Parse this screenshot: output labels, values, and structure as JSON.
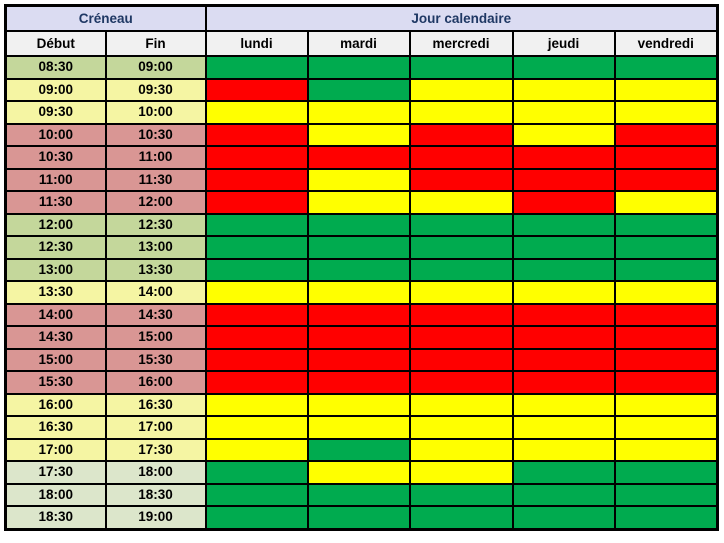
{
  "header": {
    "creneau": "Créneau",
    "jour_calendaire": "Jour calendaire",
    "debut": "Début",
    "fin": "Fin",
    "days": [
      "lundi",
      "mardi",
      "mercredi",
      "jeudi",
      "vendredi"
    ]
  },
  "palette": {
    "group_header_bg": "#DBDCF2",
    "group_header_text": "#1F3864",
    "day_header_bg": "#F1F1F1",
    "grid_border": "#000000",
    "day_colors": {
      "green": "#00AB4F",
      "yellow": "#FFFF00",
      "red": "#FF0000"
    },
    "time_colors": {
      "sage": "#C4D79B",
      "light_green": "#DCE6CB",
      "yellow": "#F5F5A3",
      "salmon": "#D99694"
    }
  },
  "chart_data": {
    "type": "heatmap",
    "title": "Jour calendaire / Créneau availability grid",
    "x_labels": [
      "lundi",
      "mardi",
      "mercredi",
      "jeudi",
      "vendredi"
    ],
    "color_scale": {
      "green": "#00AB4F",
      "yellow": "#FFFF00",
      "red": "#FF0000"
    },
    "rows": [
      {
        "debut": "08:30",
        "fin": "09:00",
        "time_color": "sage",
        "cells": [
          "green",
          "green",
          "green",
          "green",
          "green"
        ]
      },
      {
        "debut": "09:00",
        "fin": "09:30",
        "time_color": "yellow",
        "cells": [
          "red",
          "green",
          "yellow",
          "yellow",
          "yellow"
        ]
      },
      {
        "debut": "09:30",
        "fin": "10:00",
        "time_color": "yellow",
        "cells": [
          "yellow",
          "yellow",
          "yellow",
          "yellow",
          "yellow"
        ]
      },
      {
        "debut": "10:00",
        "fin": "10:30",
        "time_color": "salmon",
        "cells": [
          "red",
          "yellow",
          "red",
          "yellow",
          "red"
        ]
      },
      {
        "debut": "10:30",
        "fin": "11:00",
        "time_color": "salmon",
        "cells": [
          "red",
          "red",
          "red",
          "red",
          "red"
        ]
      },
      {
        "debut": "11:00",
        "fin": "11:30",
        "time_color": "salmon",
        "cells": [
          "red",
          "yellow",
          "red",
          "red",
          "red"
        ]
      },
      {
        "debut": "11:30",
        "fin": "12:00",
        "time_color": "salmon",
        "cells": [
          "red",
          "yellow",
          "yellow",
          "red",
          "yellow"
        ]
      },
      {
        "debut": "12:00",
        "fin": "12:30",
        "time_color": "sage",
        "cells": [
          "green",
          "green",
          "green",
          "green",
          "green"
        ]
      },
      {
        "debut": "12:30",
        "fin": "13:00",
        "time_color": "sage",
        "cells": [
          "green",
          "green",
          "green",
          "green",
          "green"
        ]
      },
      {
        "debut": "13:00",
        "fin": "13:30",
        "time_color": "sage",
        "cells": [
          "green",
          "green",
          "green",
          "green",
          "green"
        ]
      },
      {
        "debut": "13:30",
        "fin": "14:00",
        "time_color": "yellow",
        "cells": [
          "yellow",
          "yellow",
          "yellow",
          "yellow",
          "yellow"
        ]
      },
      {
        "debut": "14:00",
        "fin": "14:30",
        "time_color": "salmon",
        "cells": [
          "red",
          "red",
          "red",
          "red",
          "red"
        ]
      },
      {
        "debut": "14:30",
        "fin": "15:00",
        "time_color": "salmon",
        "cells": [
          "red",
          "red",
          "red",
          "red",
          "red"
        ]
      },
      {
        "debut": "15:00",
        "fin": "15:30",
        "time_color": "salmon",
        "cells": [
          "red",
          "red",
          "red",
          "red",
          "red"
        ]
      },
      {
        "debut": "15:30",
        "fin": "16:00",
        "time_color": "salmon",
        "cells": [
          "red",
          "red",
          "red",
          "red",
          "red"
        ]
      },
      {
        "debut": "16:00",
        "fin": "16:30",
        "time_color": "yellow",
        "cells": [
          "yellow",
          "yellow",
          "yellow",
          "yellow",
          "yellow"
        ]
      },
      {
        "debut": "16:30",
        "fin": "17:00",
        "time_color": "yellow",
        "cells": [
          "yellow",
          "yellow",
          "yellow",
          "yellow",
          "yellow"
        ]
      },
      {
        "debut": "17:00",
        "fin": "17:30",
        "time_color": "yellow",
        "cells": [
          "yellow",
          "green",
          "yellow",
          "yellow",
          "yellow"
        ]
      },
      {
        "debut": "17:30",
        "fin": "18:00",
        "time_color": "light_green",
        "cells": [
          "green",
          "yellow",
          "yellow",
          "green",
          "green"
        ]
      },
      {
        "debut": "18:00",
        "fin": "18:30",
        "time_color": "light_green",
        "cells": [
          "green",
          "green",
          "green",
          "green",
          "green"
        ]
      },
      {
        "debut": "18:30",
        "fin": "19:00",
        "time_color": "light_green",
        "cells": [
          "green",
          "green",
          "green",
          "green",
          "green"
        ]
      }
    ]
  }
}
